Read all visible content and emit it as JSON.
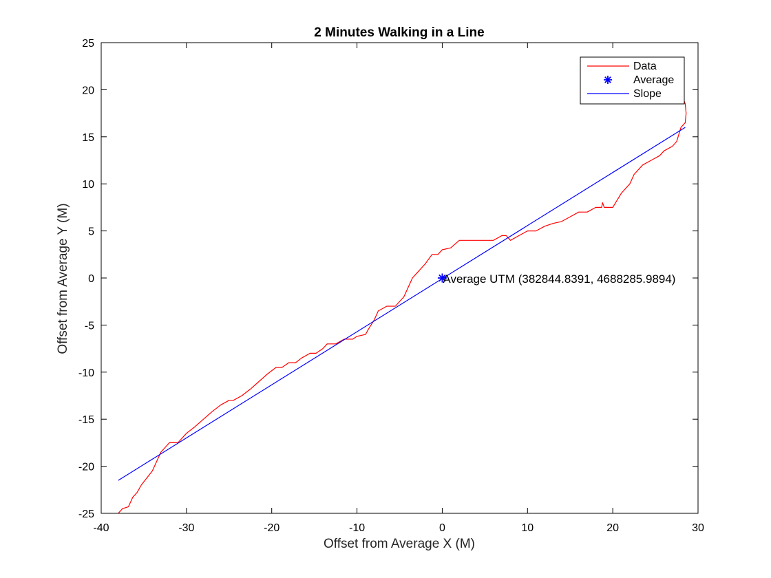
{
  "chart_data": {
    "type": "line",
    "title": "2 Minutes Walking in a Line",
    "xlabel": "Offset from Average X (M)",
    "ylabel": "Offset from Average Y (M)",
    "xlim": [
      -40,
      30
    ],
    "ylim": [
      -25,
      25
    ],
    "xticks": [
      -40,
      -30,
      -20,
      -10,
      0,
      10,
      20,
      30
    ],
    "yticks": [
      -25,
      -20,
      -15,
      -10,
      -5,
      0,
      5,
      10,
      15,
      20,
      25
    ],
    "grid": false,
    "legend": {
      "placement": "top-right",
      "entries": [
        "Data",
        "Average",
        "Slope"
      ]
    },
    "colors": {
      "data": "#ff0000",
      "average": "#0000ff",
      "slope": "#0000ff"
    },
    "series": [
      {
        "name": "Data",
        "style": "line",
        "points": [
          [
            -38.0,
            -25.0
          ],
          [
            -37.5,
            -24.5
          ],
          [
            -36.8,
            -24.3
          ],
          [
            -36.3,
            -23.3
          ],
          [
            -35.8,
            -22.8
          ],
          [
            -35.3,
            -22.0
          ],
          [
            -34.0,
            -20.5
          ],
          [
            -33.5,
            -19.5
          ],
          [
            -33.0,
            -18.5
          ],
          [
            -32.0,
            -17.5
          ],
          [
            -31.0,
            -17.5
          ],
          [
            -30.0,
            -16.5
          ],
          [
            -29.0,
            -15.8
          ],
          [
            -28.0,
            -15.0
          ],
          [
            -27.0,
            -14.2
          ],
          [
            -26.0,
            -13.5
          ],
          [
            -25.0,
            -13.0
          ],
          [
            -24.5,
            -13.0
          ],
          [
            -23.5,
            -12.5
          ],
          [
            -22.5,
            -11.8
          ],
          [
            -21.5,
            -11.0
          ],
          [
            -20.5,
            -10.2
          ],
          [
            -19.5,
            -9.5
          ],
          [
            -18.8,
            -9.5
          ],
          [
            -18.0,
            -9.0
          ],
          [
            -17.2,
            -9.0
          ],
          [
            -16.5,
            -8.5
          ],
          [
            -15.5,
            -8.0
          ],
          [
            -14.8,
            -8.0
          ],
          [
            -14.0,
            -7.5
          ],
          [
            -13.5,
            -7.0
          ],
          [
            -12.5,
            -7.0
          ],
          [
            -11.5,
            -6.5
          ],
          [
            -10.5,
            -6.5
          ],
          [
            -10.0,
            -6.2
          ],
          [
            -9.0,
            -6.0
          ],
          [
            -8.7,
            -5.5
          ],
          [
            -8.0,
            -4.5
          ],
          [
            -7.5,
            -3.5
          ],
          [
            -6.5,
            -3.0
          ],
          [
            -5.5,
            -3.0
          ],
          [
            -4.5,
            -2.0
          ],
          [
            -3.5,
            0.0
          ],
          [
            -3.0,
            0.5
          ],
          [
            -2.0,
            1.5
          ],
          [
            -1.2,
            2.5
          ],
          [
            -0.5,
            2.5
          ],
          [
            0.0,
            3.0
          ],
          [
            1.0,
            3.2
          ],
          [
            2.0,
            4.0
          ],
          [
            3.5,
            4.0
          ],
          [
            6.0,
            4.0
          ],
          [
            7.0,
            4.5
          ],
          [
            7.5,
            4.5
          ],
          [
            8.0,
            4.0
          ],
          [
            9.0,
            4.5
          ],
          [
            10.0,
            5.0
          ],
          [
            11.0,
            5.0
          ],
          [
            12.0,
            5.5
          ],
          [
            13.0,
            5.8
          ],
          [
            14.0,
            6.0
          ],
          [
            15.0,
            6.5
          ],
          [
            16.0,
            7.0
          ],
          [
            17.0,
            7.0
          ],
          [
            18.0,
            7.5
          ],
          [
            18.7,
            7.5
          ],
          [
            18.8,
            8.0
          ],
          [
            19.0,
            7.5
          ],
          [
            20.0,
            7.5
          ],
          [
            21.0,
            9.0
          ],
          [
            22.0,
            10.0
          ],
          [
            22.5,
            11.0
          ],
          [
            23.5,
            12.0
          ],
          [
            24.5,
            12.5
          ],
          [
            25.5,
            13.0
          ],
          [
            26.0,
            13.5
          ],
          [
            27.0,
            14.0
          ],
          [
            27.5,
            14.5
          ],
          [
            28.0,
            16.0
          ],
          [
            28.5,
            16.5
          ],
          [
            28.6,
            17.5
          ],
          [
            28.5,
            18.5
          ],
          [
            28.3,
            19.0
          ]
        ]
      },
      {
        "name": "Average",
        "style": "marker",
        "marker": "asterisk",
        "points": [
          [
            0,
            0
          ]
        ]
      },
      {
        "name": "Slope",
        "style": "line",
        "points": [
          [
            -38.0,
            -21.5
          ],
          [
            28.5,
            16.0
          ]
        ]
      }
    ],
    "annotations": [
      {
        "text": "Average UTM (382844.8391, 4688285.9894)",
        "x": 0,
        "y": 0
      }
    ]
  }
}
